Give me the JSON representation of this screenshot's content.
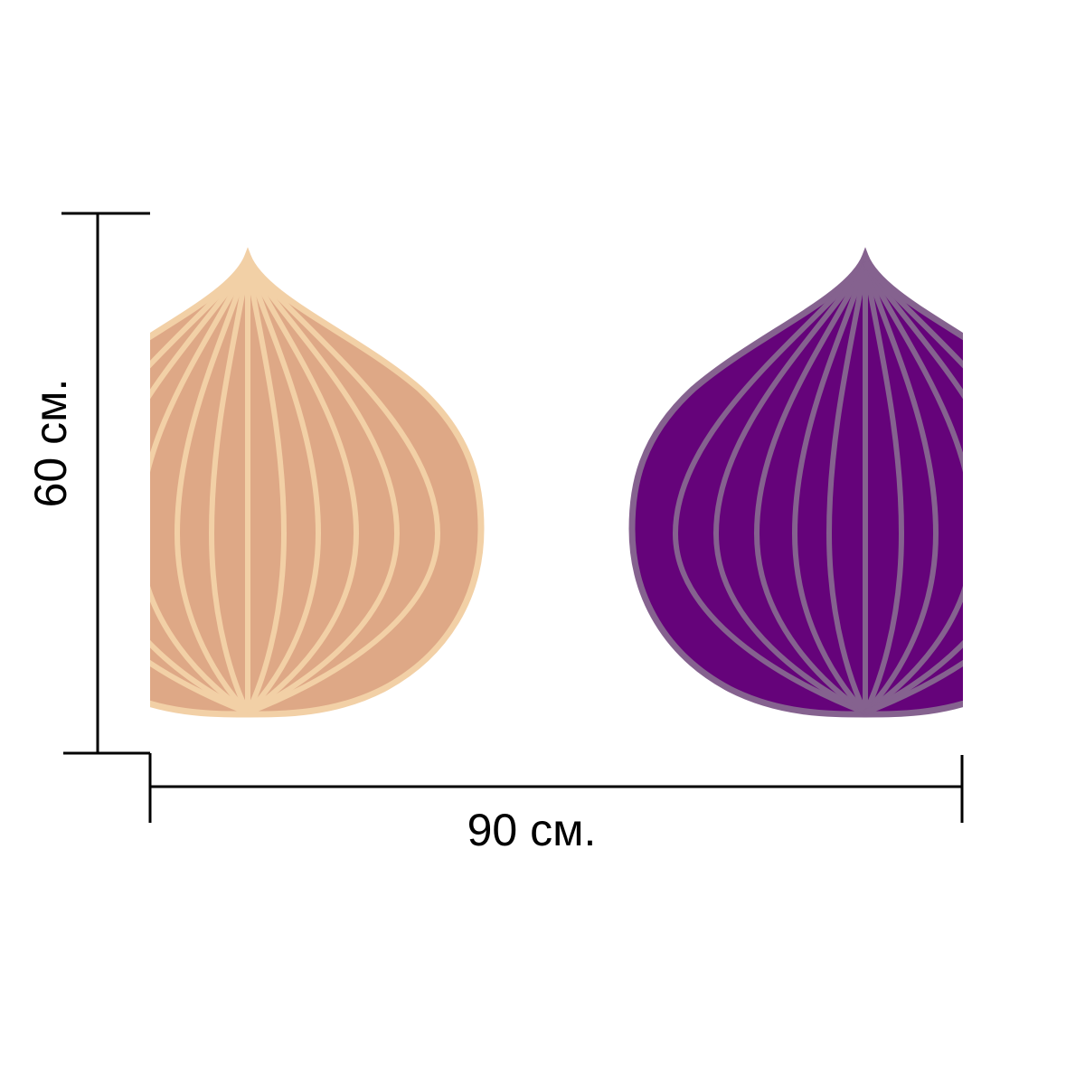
{
  "dimensions": {
    "height_label": "60 см.",
    "width_label": "90 см."
  },
  "artwork": {
    "left_onion": {
      "icon": "yellow-onion-icon",
      "fill_color": "#DEA886",
      "stroke_color": "#F2D0A6"
    },
    "right_onion": {
      "icon": "red-onion-icon",
      "fill_color": "#65037A",
      "stroke_color": "#85628F"
    }
  }
}
